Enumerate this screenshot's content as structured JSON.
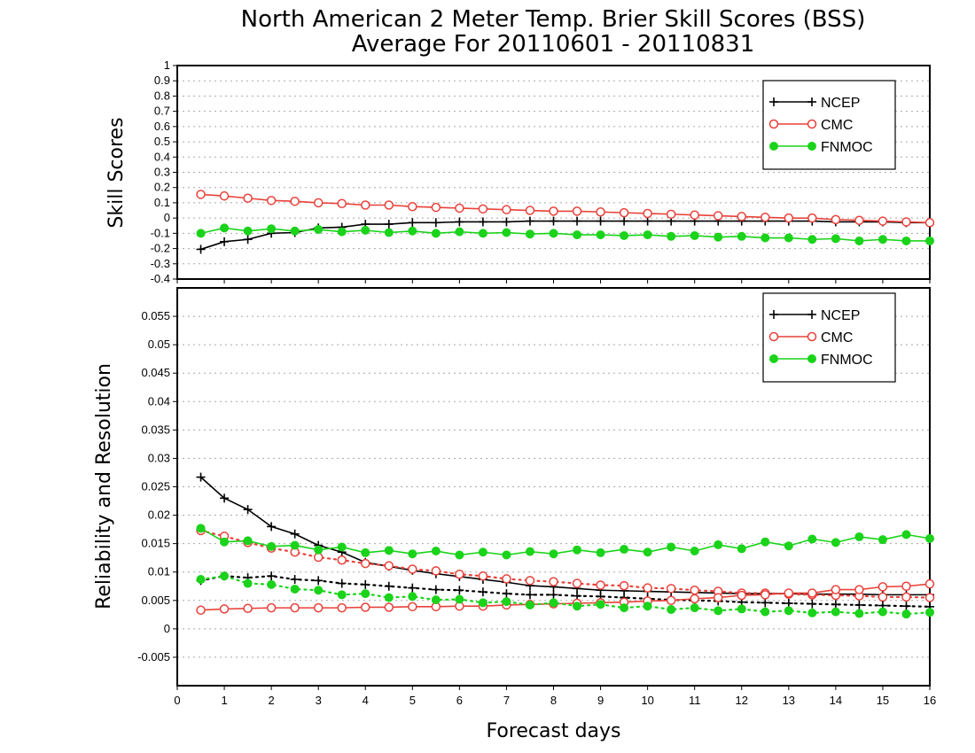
{
  "title": {
    "line1": "North American 2 Meter Temp. Brier Skill Scores (BSS)",
    "line2": "Average For 20110601 - 20110831"
  },
  "colors": {
    "NCEP": "#000000",
    "CMC": "#e8413a",
    "FNMOC": "#1ad31a"
  },
  "chart_data": [
    {
      "type": "line",
      "ylabel": "Skill Scores",
      "xlabel": "",
      "xlim": [
        0,
        16
      ],
      "ylim": [
        -0.4,
        1
      ],
      "grid": true,
      "legend_position": "top-right",
      "x_ticks": [
        "0",
        "1",
        "2",
        "3",
        "4",
        "5",
        "6",
        "7",
        "8",
        "9",
        "10",
        "11",
        "12",
        "13",
        "14",
        "15",
        "16"
      ],
      "y_ticks": [
        "-0.4",
        "-0.3",
        "-0.2",
        "-0.1",
        "0",
        "0.1",
        "0.2",
        "0.3",
        "0.4",
        "0.5",
        "0.6",
        "0.7",
        "0.8",
        "0.9",
        "1"
      ],
      "x": [
        0.5,
        1,
        1.5,
        2,
        2.5,
        3,
        3.5,
        4,
        4.5,
        5,
        5.5,
        6,
        6.5,
        7,
        7.5,
        8,
        8.5,
        9,
        9.5,
        10,
        10.5,
        11,
        11.5,
        12,
        12.5,
        13,
        13.5,
        14,
        14.5,
        15,
        15.5,
        16
      ],
      "series": [
        {
          "name": "NCEP",
          "style": "solid",
          "marker": "plus",
          "values": [
            -0.205,
            -0.155,
            -0.14,
            -0.1,
            -0.095,
            -0.065,
            -0.06,
            -0.04,
            -0.04,
            -0.03,
            -0.03,
            -0.025,
            -0.025,
            -0.025,
            -0.02,
            -0.02,
            -0.02,
            -0.02,
            -0.02,
            -0.02,
            -0.02,
            -0.02,
            -0.02,
            -0.02,
            -0.02,
            -0.02,
            -0.02,
            -0.025,
            -0.025,
            -0.025,
            -0.03,
            -0.03
          ]
        },
        {
          "name": "CMC",
          "style": "solid",
          "marker": "open-circle",
          "values": [
            0.155,
            0.145,
            0.13,
            0.115,
            0.11,
            0.1,
            0.095,
            0.085,
            0.085,
            0.075,
            0.07,
            0.065,
            0.06,
            0.055,
            0.05,
            0.045,
            0.045,
            0.04,
            0.035,
            0.03,
            0.025,
            0.02,
            0.015,
            0.01,
            0.005,
            0.0,
            0.0,
            -0.01,
            -0.015,
            -0.02,
            -0.025,
            -0.03
          ]
        },
        {
          "name": "FNMOC",
          "style": "solid",
          "marker": "filled-circle",
          "values": [
            -0.1,
            -0.065,
            -0.085,
            -0.07,
            -0.085,
            -0.075,
            -0.09,
            -0.08,
            -0.095,
            -0.085,
            -0.1,
            -0.09,
            -0.1,
            -0.095,
            -0.105,
            -0.1,
            -0.11,
            -0.11,
            -0.115,
            -0.11,
            -0.12,
            -0.115,
            -0.125,
            -0.12,
            -0.13,
            -0.13,
            -0.14,
            -0.135,
            -0.15,
            -0.14,
            -0.15,
            -0.15
          ]
        }
      ],
      "legend": [
        "NCEP",
        "CMC",
        "FNMOC"
      ]
    },
    {
      "type": "line",
      "ylabel": "Reliability and Resolution",
      "xlabel": "Forecast days",
      "xlim": [
        0,
        16
      ],
      "ylim": [
        -0.01,
        0.06
      ],
      "grid": true,
      "legend_position": "top-right",
      "x_ticks": [
        "0",
        "1",
        "2",
        "3",
        "4",
        "5",
        "6",
        "7",
        "8",
        "9",
        "10",
        "11",
        "12",
        "13",
        "14",
        "15",
        "16"
      ],
      "y_ticks": [
        "-0.005",
        "0",
        "0.005",
        "0.01",
        "0.015",
        "0.02",
        "0.025",
        "0.03",
        "0.035",
        "0.04",
        "0.045",
        "0.05",
        "0.055"
      ],
      "x": [
        0.5,
        1,
        1.5,
        2,
        2.5,
        3,
        3.5,
        4,
        4.5,
        5,
        5.5,
        6,
        6.5,
        7,
        7.5,
        8,
        8.5,
        9,
        9.5,
        10,
        10.5,
        11,
        11.5,
        12,
        12.5,
        13,
        13.5,
        14,
        14.5,
        15,
        15.5,
        16
      ],
      "series": [
        {
          "name": "NCEP",
          "group": "resolution",
          "style": "solid",
          "marker": "plus",
          "values": [
            0.0267,
            0.023,
            0.021,
            0.018,
            0.0167,
            0.0147,
            0.0135,
            0.0117,
            0.011,
            0.0103,
            0.0097,
            0.0092,
            0.0087,
            0.0082,
            0.0076,
            0.0074,
            0.0071,
            0.0068,
            0.0067,
            0.0066,
            0.0065,
            0.0064,
            0.0063,
            0.0062,
            0.0062,
            0.0062,
            0.0061,
            0.0061,
            0.0061,
            0.006,
            0.006,
            0.006
          ]
        },
        {
          "name": "CMC",
          "group": "resolution",
          "style": "dotted",
          "marker": "open-circle",
          "values": [
            0.0173,
            0.0163,
            0.0152,
            0.0142,
            0.0135,
            0.0126,
            0.0121,
            0.0115,
            0.0111,
            0.0105,
            0.0102,
            0.0096,
            0.0093,
            0.0088,
            0.0085,
            0.0083,
            0.008,
            0.0077,
            0.0076,
            0.0072,
            0.0071,
            0.0068,
            0.0066,
            0.0063,
            0.0063,
            0.0061,
            0.006,
            0.0059,
            0.0058,
            0.0056,
            0.0056,
            0.0055
          ]
        },
        {
          "name": "FNMOC",
          "group": "resolution",
          "style": "solid",
          "marker": "filled-circle",
          "values": [
            0.0177,
            0.0153,
            0.0155,
            0.0145,
            0.0147,
            0.0139,
            0.0144,
            0.0134,
            0.0138,
            0.0132,
            0.0137,
            0.013,
            0.0135,
            0.013,
            0.0136,
            0.0132,
            0.0139,
            0.0134,
            0.014,
            0.0135,
            0.0144,
            0.0137,
            0.0148,
            0.0141,
            0.0153,
            0.0146,
            0.0158,
            0.0152,
            0.0162,
            0.0157,
            0.0166,
            0.0159
          ]
        },
        {
          "name": "NCEP",
          "group": "reliability",
          "style": "dotted",
          "marker": "plus",
          "values": [
            0.0085,
            0.0093,
            0.009,
            0.0093,
            0.0087,
            0.0085,
            0.008,
            0.0078,
            0.0075,
            0.0072,
            0.0069,
            0.0068,
            0.0065,
            0.0062,
            0.006,
            0.006,
            0.0058,
            0.0057,
            0.0055,
            0.0053,
            0.0051,
            0.005,
            0.0049,
            0.0047,
            0.0046,
            0.0045,
            0.0044,
            0.0043,
            0.0042,
            0.0041,
            0.004,
            0.0039
          ]
        },
        {
          "name": "CMC",
          "group": "reliability",
          "style": "solid",
          "marker": "open-circle",
          "values": [
            0.0033,
            0.0035,
            0.0036,
            0.0037,
            0.0037,
            0.0037,
            0.0037,
            0.0038,
            0.0038,
            0.0039,
            0.0039,
            0.004,
            0.004,
            0.0042,
            0.0043,
            0.0044,
            0.0045,
            0.0046,
            0.0047,
            0.0049,
            0.005,
            0.0053,
            0.0055,
            0.0059,
            0.006,
            0.0063,
            0.0063,
            0.0069,
            0.0069,
            0.0074,
            0.0075,
            0.0079
          ]
        },
        {
          "name": "FNMOC",
          "group": "reliability",
          "style": "dotted",
          "marker": "filled-circle",
          "values": [
            0.0087,
            0.0093,
            0.008,
            0.0078,
            0.007,
            0.0068,
            0.006,
            0.0062,
            0.0055,
            0.0057,
            0.0051,
            0.0052,
            0.0046,
            0.0048,
            0.0042,
            0.0046,
            0.004,
            0.0043,
            0.0037,
            0.004,
            0.0034,
            0.0037,
            0.0032,
            0.0035,
            0.003,
            0.0032,
            0.0028,
            0.003,
            0.0027,
            0.003,
            0.0026,
            0.0029
          ]
        }
      ],
      "legend": [
        "NCEP",
        "CMC",
        "FNMOC"
      ]
    }
  ]
}
